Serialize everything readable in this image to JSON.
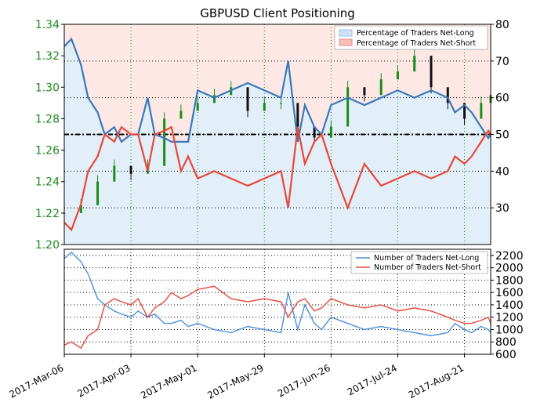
{
  "chart_data": [
    {
      "type": "candlestick+line",
      "title": "GBPUSD Client Positioning",
      "ylim_left": [
        1.2,
        1.34
      ],
      "yticks_left": [
        "1.20",
        "1.22",
        "1.24",
        "1.26",
        "1.28",
        "1.30",
        "1.32",
        "1.34"
      ],
      "ylim_right": [
        20,
        80
      ],
      "yticks_right": [
        "30",
        "40",
        "50",
        "60",
        "70",
        "80"
      ],
      "x_tick_labels": [
        "2017-Mar-06",
        "2017-Apr-03",
        "2017-May-01",
        "2017-May-29",
        "2017-Jun-26",
        "2017-Jul-24",
        "2017-Aug-21"
      ],
      "reference_line_right": 50,
      "legend": {
        "position": "top-right",
        "entries": [
          "Percentage of Traders Net-Long",
          "Percentage of Traders Net-Short"
        ]
      },
      "price_series": {
        "name": "GBPUSD",
        "x": [
          "2017-03-06",
          "2017-03-13",
          "2017-03-20",
          "2017-03-27",
          "2017-04-03",
          "2017-04-10",
          "2017-04-17",
          "2017-04-24",
          "2017-05-01",
          "2017-05-08",
          "2017-05-15",
          "2017-05-22",
          "2017-05-29",
          "2017-06-05",
          "2017-06-12",
          "2017-06-19",
          "2017-06-26",
          "2017-07-03",
          "2017-07-10",
          "2017-07-17",
          "2017-07-24",
          "2017-07-31",
          "2017-08-07",
          "2017-08-14",
          "2017-08-21",
          "2017-08-28",
          "2017-09-01"
        ],
        "values": [
          1.22,
          1.225,
          1.24,
          1.25,
          1.245,
          1.25,
          1.28,
          1.285,
          1.29,
          1.295,
          1.3,
          1.285,
          1.29,
          1.29,
          1.275,
          1.268,
          1.275,
          1.3,
          1.295,
          1.305,
          1.31,
          1.32,
          1.3,
          1.29,
          1.28,
          1.29,
          1.295
        ]
      },
      "series": [
        {
          "name": "Percentage of Traders Net-Long",
          "color": "#3a78b8",
          "x": [
            "2017-03-06",
            "2017-03-09",
            "2017-03-13",
            "2017-03-16",
            "2017-03-20",
            "2017-03-23",
            "2017-03-27",
            "2017-03-30",
            "2017-04-03",
            "2017-04-06",
            "2017-04-10",
            "2017-04-13",
            "2017-04-17",
            "2017-04-20",
            "2017-04-24",
            "2017-04-27",
            "2017-05-01",
            "2017-05-08",
            "2017-05-15",
            "2017-05-22",
            "2017-05-29",
            "2017-06-05",
            "2017-06-08",
            "2017-06-12",
            "2017-06-15",
            "2017-06-19",
            "2017-06-22",
            "2017-06-26",
            "2017-07-03",
            "2017-07-10",
            "2017-07-17",
            "2017-07-24",
            "2017-07-31",
            "2017-08-07",
            "2017-08-14",
            "2017-08-17",
            "2017-08-21",
            "2017-08-24",
            "2017-08-28",
            "2017-08-31",
            "2017-09-01"
          ],
          "values": [
            74,
            76,
            69,
            60,
            56,
            50,
            52,
            48,
            50,
            50,
            60,
            50,
            49,
            48,
            48,
            48,
            62,
            60,
            62,
            64,
            62,
            60,
            70,
            48,
            58,
            52,
            50,
            58,
            60,
            58,
            60,
            62,
            60,
            62,
            60,
            56,
            58,
            56,
            52,
            49,
            50
          ]
        },
        {
          "name": "Percentage of Traders Net-Short",
          "color": "#e8473a",
          "x": [
            "2017-03-06",
            "2017-03-09",
            "2017-03-13",
            "2017-03-16",
            "2017-03-20",
            "2017-03-23",
            "2017-03-27",
            "2017-03-30",
            "2017-04-03",
            "2017-04-06",
            "2017-04-10",
            "2017-04-13",
            "2017-04-17",
            "2017-04-20",
            "2017-04-24",
            "2017-04-27",
            "2017-05-01",
            "2017-05-08",
            "2017-05-15",
            "2017-05-22",
            "2017-05-29",
            "2017-06-05",
            "2017-06-08",
            "2017-06-12",
            "2017-06-15",
            "2017-06-19",
            "2017-06-22",
            "2017-06-26",
            "2017-07-03",
            "2017-07-10",
            "2017-07-17",
            "2017-07-24",
            "2017-07-31",
            "2017-08-07",
            "2017-08-14",
            "2017-08-17",
            "2017-08-21",
            "2017-08-24",
            "2017-08-28",
            "2017-08-31",
            "2017-09-01"
          ],
          "values": [
            26,
            24,
            31,
            40,
            44,
            50,
            48,
            52,
            50,
            50,
            40,
            50,
            51,
            52,
            40,
            44,
            38,
            40,
            38,
            36,
            38,
            40,
            30,
            52,
            42,
            48,
            50,
            42,
            30,
            42,
            36,
            38,
            40,
            38,
            40,
            44,
            42,
            44,
            48,
            51,
            50
          ]
        }
      ]
    },
    {
      "type": "line",
      "ylim": [
        600,
        2300
      ],
      "yticks": [
        "600",
        "800",
        "1000",
        "1200",
        "1400",
        "1600",
        "1800",
        "2000",
        "2200"
      ],
      "x_tick_labels": [
        "2017-Mar-06",
        "2017-Apr-03",
        "2017-May-01",
        "2017-May-29",
        "2017-Jun-26",
        "2017-Jul-24",
        "2017-Aug-21"
      ],
      "legend": {
        "position": "top-right",
        "entries": [
          "Number of Traders Net-Long",
          "Number of Traders Net-Short"
        ]
      },
      "series": [
        {
          "name": "Number of Traders Net-Long",
          "color": "#4a90d9",
          "x": [
            "2017-03-06",
            "2017-03-09",
            "2017-03-13",
            "2017-03-16",
            "2017-03-20",
            "2017-03-23",
            "2017-03-27",
            "2017-03-30",
            "2017-04-03",
            "2017-04-06",
            "2017-04-10",
            "2017-04-13",
            "2017-04-17",
            "2017-04-20",
            "2017-04-24",
            "2017-04-27",
            "2017-05-01",
            "2017-05-08",
            "2017-05-15",
            "2017-05-22",
            "2017-05-29",
            "2017-06-05",
            "2017-06-08",
            "2017-06-12",
            "2017-06-15",
            "2017-06-19",
            "2017-06-22",
            "2017-06-26",
            "2017-07-03",
            "2017-07-10",
            "2017-07-17",
            "2017-07-24",
            "2017-07-31",
            "2017-08-07",
            "2017-08-14",
            "2017-08-17",
            "2017-08-21",
            "2017-08-24",
            "2017-08-28",
            "2017-08-31",
            "2017-09-01"
          ],
          "values": [
            2150,
            2250,
            2100,
            1900,
            1500,
            1400,
            1300,
            1250,
            1200,
            1300,
            1200,
            1250,
            1100,
            1100,
            1150,
            1050,
            1100,
            1000,
            950,
            1050,
            1000,
            950,
            1600,
            1000,
            1400,
            1100,
            1000,
            1200,
            1100,
            1000,
            1050,
            1000,
            950,
            900,
            950,
            1100,
            1000,
            950,
            1050,
            1000,
            950
          ]
        },
        {
          "name": "Number of Traders Net-Short",
          "color": "#e8473a",
          "x": [
            "2017-03-06",
            "2017-03-09",
            "2017-03-13",
            "2017-03-16",
            "2017-03-20",
            "2017-03-23",
            "2017-03-27",
            "2017-03-30",
            "2017-04-03",
            "2017-04-06",
            "2017-04-10",
            "2017-04-13",
            "2017-04-17",
            "2017-04-20",
            "2017-04-24",
            "2017-04-27",
            "2017-05-01",
            "2017-05-08",
            "2017-05-15",
            "2017-05-22",
            "2017-05-29",
            "2017-06-05",
            "2017-06-08",
            "2017-06-12",
            "2017-06-15",
            "2017-06-19",
            "2017-06-22",
            "2017-06-26",
            "2017-07-03",
            "2017-07-10",
            "2017-07-17",
            "2017-07-24",
            "2017-07-31",
            "2017-08-07",
            "2017-08-14",
            "2017-08-17",
            "2017-08-21",
            "2017-08-24",
            "2017-08-28",
            "2017-08-31",
            "2017-09-01"
          ],
          "values": [
            750,
            800,
            700,
            900,
            1000,
            1400,
            1500,
            1450,
            1400,
            1500,
            1200,
            1350,
            1450,
            1600,
            1500,
            1550,
            1650,
            1700,
            1500,
            1450,
            1500,
            1450,
            1200,
            1450,
            1500,
            1300,
            1350,
            1500,
            1400,
            1350,
            1400,
            1300,
            1350,
            1300,
            1200,
            1150,
            1100,
            1100,
            1150,
            1200,
            1100
          ]
        }
      ]
    }
  ]
}
